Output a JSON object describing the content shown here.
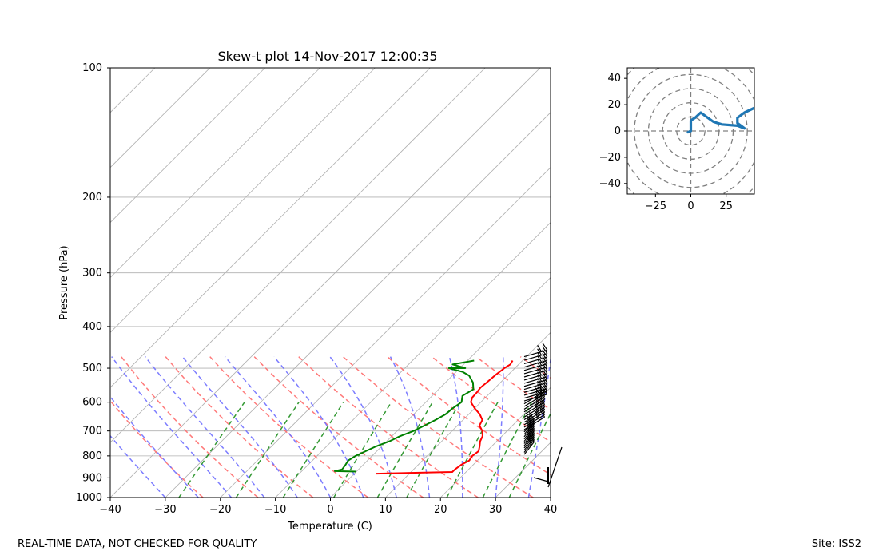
{
  "chart_data": [
    {
      "type": "line",
      "title": "Skew-t plot 14-Nov-2017 12:00:35",
      "xlabel": "Temperature (C)",
      "ylabel": "Pressure (hPa)",
      "xlim": [
        -40,
        40
      ],
      "ylim": [
        1000,
        100
      ],
      "y_scale": "log",
      "xticks": [
        "−40",
        "−30",
        "−20",
        "−10",
        "0",
        "10",
        "20",
        "30",
        "40"
      ],
      "yticks": [
        "100",
        "200",
        "300",
        "400",
        "500",
        "600",
        "700",
        "800",
        "900",
        "1000"
      ],
      "grid": true,
      "series": [
        {
          "color": "#ff0000",
          "points": [
            [
              8.2,
              480
            ],
            [
              8.5,
              490
            ],
            [
              8.1,
              500
            ],
            [
              7.7,
              520
            ],
            [
              7.5,
              540
            ],
            [
              7.3,
              555
            ],
            [
              7.5,
              570
            ],
            [
              7.6,
              585
            ],
            [
              8.2,
              600
            ],
            [
              10.0,
              620
            ],
            [
              12.0,
              640
            ],
            [
              13.5,
              660
            ],
            [
              14.0,
              680
            ],
            [
              15.5,
              700
            ],
            [
              16.5,
              720
            ],
            [
              17.0,
              740
            ],
            [
              17.8,
              760
            ],
            [
              18.5,
              780
            ],
            [
              18.2,
              800
            ],
            [
              18.5,
              820
            ],
            [
              17.8,
              840
            ],
            [
              17.5,
              860
            ],
            [
              17.5,
              872
            ],
            [
              4.0,
              880
            ]
          ]
        },
        {
          "color": "#008000",
          "points": [
            [
              1.2,
              480
            ],
            [
              -2.0,
              490
            ],
            [
              1.0,
              500
            ],
            [
              -2.0,
              500
            ],
            [
              1.2,
              510
            ],
            [
              3.0,
              520
            ],
            [
              5.0,
              540
            ],
            [
              6.3,
              560
            ],
            [
              5.5,
              580
            ],
            [
              6.5,
              600
            ],
            [
              6.0,
              620
            ],
            [
              5.8,
              640
            ],
            [
              5.0,
              660
            ],
            [
              4.0,
              680
            ],
            [
              3.0,
              700
            ],
            [
              1.5,
              720
            ],
            [
              0.5,
              740
            ],
            [
              -1.0,
              760
            ],
            [
              -2.0,
              780
            ],
            [
              -3.0,
              800
            ],
            [
              -3.5,
              820
            ],
            [
              -3.2,
              840
            ],
            [
              -3.0,
              860
            ],
            [
              -4.0,
              868
            ],
            [
              0.0,
              870
            ]
          ]
        }
      ],
      "wind_barbs": "present",
      "reference_lines": [
        "dry adiabats",
        "moist adiabats",
        "mixing ratio"
      ]
    },
    {
      "type": "line",
      "title": "",
      "xlim": [
        -45,
        45
      ],
      "ylim": [
        -48,
        48
      ],
      "xticks": [
        "−25",
        "0",
        "25"
      ],
      "yticks": [
        "40",
        "20",
        "0",
        "−20",
        "−40"
      ],
      "series": [
        {
          "color": "#1f77b4",
          "points": [
            [
              -2,
              -1
            ],
            [
              0,
              0
            ],
            [
              0,
              8
            ],
            [
              3,
              10
            ],
            [
              7,
              14
            ],
            [
              12,
              10
            ],
            [
              16,
              7
            ],
            [
              22,
              5
            ],
            [
              33,
              4
            ],
            [
              38,
              2
            ],
            [
              33,
              6
            ],
            [
              33,
              10
            ],
            [
              38,
              14
            ],
            [
              44,
              17
            ],
            [
              50,
              20
            ]
          ]
        }
      ]
    }
  ],
  "footer": {
    "left": "REAL-TIME DATA, NOT CHECKED FOR QUALITY",
    "right": "Site: ISS2"
  }
}
